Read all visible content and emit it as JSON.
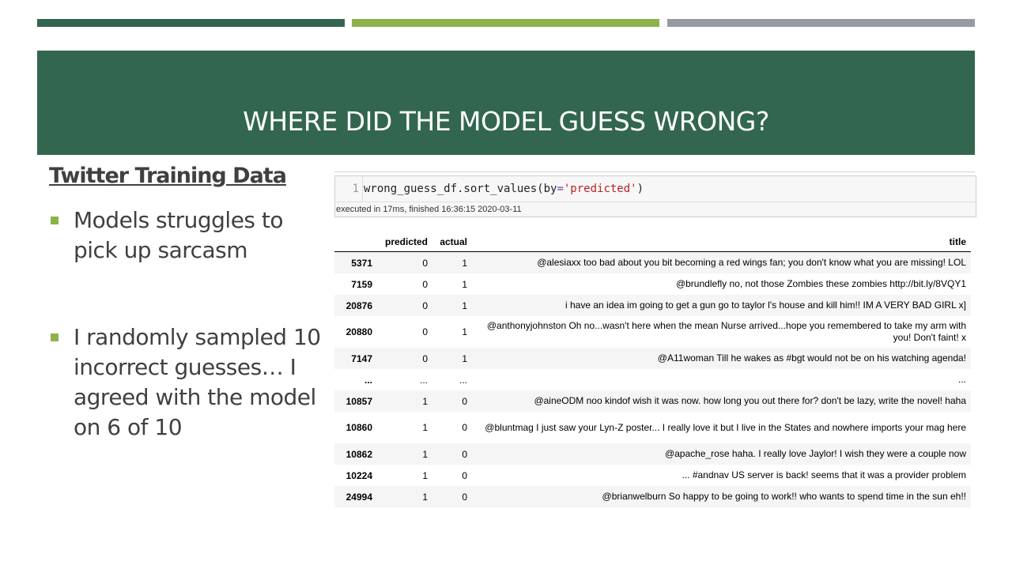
{
  "colors": {
    "bar1": "#33664f",
    "bar2": "#8db24a",
    "bar3": "#959ba1",
    "banner": "#33664f",
    "bullet": "#8db24a"
  },
  "slide": {
    "title": "WHERE DID THE MODEL GUESS WRONG?",
    "heading": "Twitter Training Data",
    "bullets": [
      "Models struggles to pick up sarcasm",
      "I randomly sampled 10 incorrect guesses… I agreed with the model on 6 of 10"
    ]
  },
  "notebook": {
    "line_number": "1",
    "code_prefix": "wrong_guess_df.sort_values(by",
    "code_eq": "=",
    "code_string": "'predicted'",
    "code_suffix": ")",
    "exec_info": "executed in 17ms, finished 16:36:15 2020-03-11"
  },
  "table": {
    "columns": [
      "",
      "predicted",
      "actual",
      "title"
    ],
    "rows": [
      {
        "idx": "5371",
        "predicted": "0",
        "actual": "1",
        "title": "@alesiaxx too bad about you bit becoming a red wings fan; you don't know what you are missing! LOL"
      },
      {
        "idx": "7159",
        "predicted": "0",
        "actual": "1",
        "title": "@brundlefly no, not those Zombies these zombies http://bit.ly/8VQY1"
      },
      {
        "idx": "20876",
        "predicted": "0",
        "actual": "1",
        "title": "i have an idea im going to get a gun go to taylor l's house and kill him!! IM A VERY BAD GIRL x]"
      },
      {
        "idx": "20880",
        "predicted": "0",
        "actual": "1",
        "title": "@anthonyjohnston Oh no...wasn't here when the mean Nurse arrived...hope you remembered to take my arm with you! Don't faint! x"
      },
      {
        "idx": "7147",
        "predicted": "0",
        "actual": "1",
        "title": "@A11woman Till he wakes as #bgt would not be on his watching agenda!"
      },
      {
        "idx": "...",
        "predicted": "...",
        "actual": "...",
        "title": "..."
      },
      {
        "idx": "10857",
        "predicted": "1",
        "actual": "0",
        "title": "@aineODM noo kindof wish it was now. how long you out there for? don't be lazy, write the novel! haha"
      },
      {
        "idx": "10860",
        "predicted": "1",
        "actual": "0",
        "title": "@bluntmag I just saw your Lyn-Z poster... I really love it but I live in the States and nowhere imports your mag here"
      },
      {
        "idx": "10862",
        "predicted": "1",
        "actual": "0",
        "title": "@apache_rose haha. I really love Jaylor! I wish they were a couple now"
      },
      {
        "idx": "10224",
        "predicted": "1",
        "actual": "0",
        "title": "... #andnav US server is back! seems that it was a provider problem"
      },
      {
        "idx": "24994",
        "predicted": "1",
        "actual": "0",
        "title": "@brianwelburn So happy to be going to work!! who wants to spend time in the sun eh!!"
      }
    ]
  }
}
